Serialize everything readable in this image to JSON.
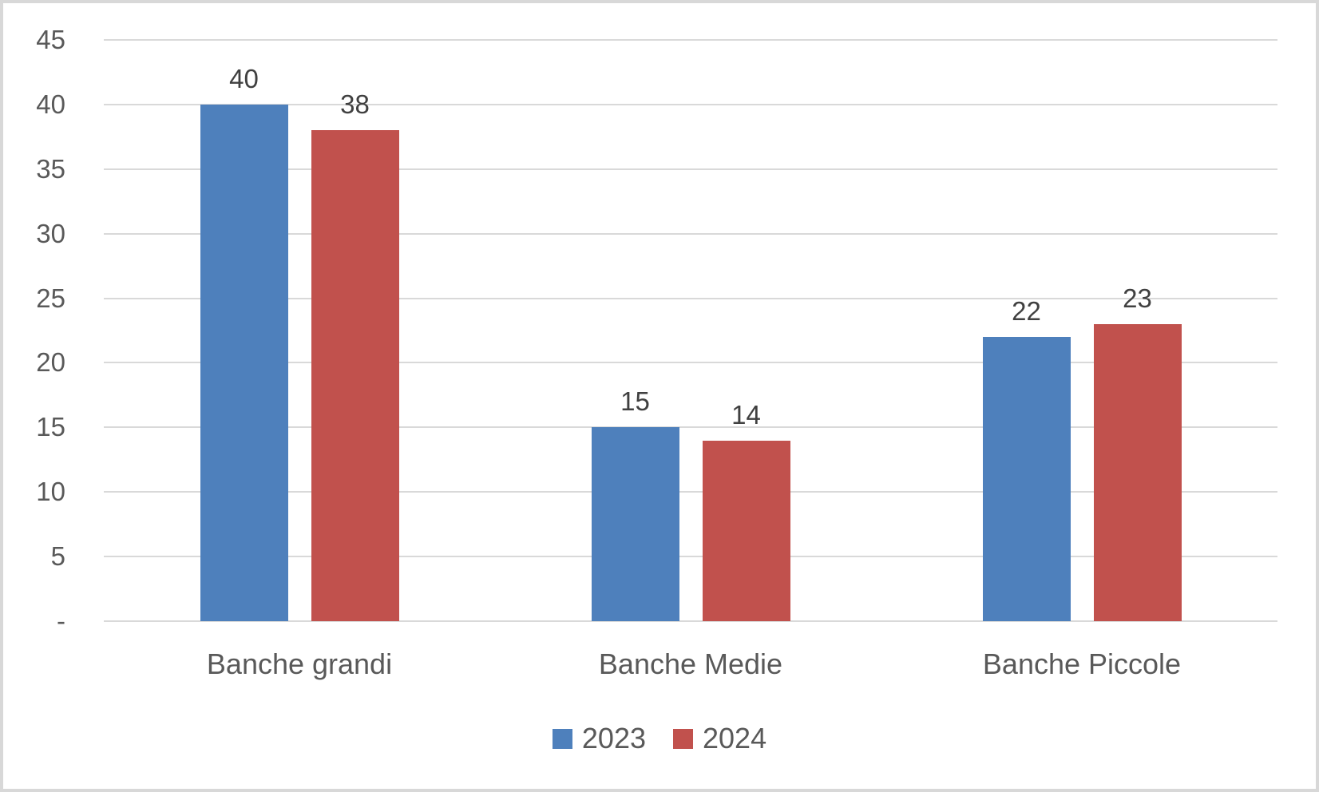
{
  "chart_data": {
    "type": "bar",
    "categories": [
      "Banche grandi",
      "Banche Medie",
      "Banche Piccole"
    ],
    "series": [
      {
        "name": "2023",
        "color": "#4E80BC",
        "values": [
          40,
          15,
          22
        ]
      },
      {
        "name": "2024",
        "color": "#C1514D",
        "values": [
          38,
          14,
          23
        ]
      }
    ],
    "title": "",
    "xlabel": "",
    "ylabel": "",
    "ylim": [
      0,
      45
    ],
    "ytick_values": [
      0,
      5,
      10,
      15,
      20,
      25,
      30,
      35,
      40,
      45
    ],
    "ytick_labels": [
      "-",
      "5",
      "10",
      "15",
      "20",
      "25",
      "30",
      "35",
      "40",
      "45"
    ],
    "grid": true,
    "data_labels": true,
    "legend_position": "bottom"
  },
  "colors": {
    "background": "#FFFFFF",
    "border": "#D8D8D8",
    "gridline": "#D9D9D9",
    "axis_text": "#595959",
    "data_label_text": "#404040"
  }
}
